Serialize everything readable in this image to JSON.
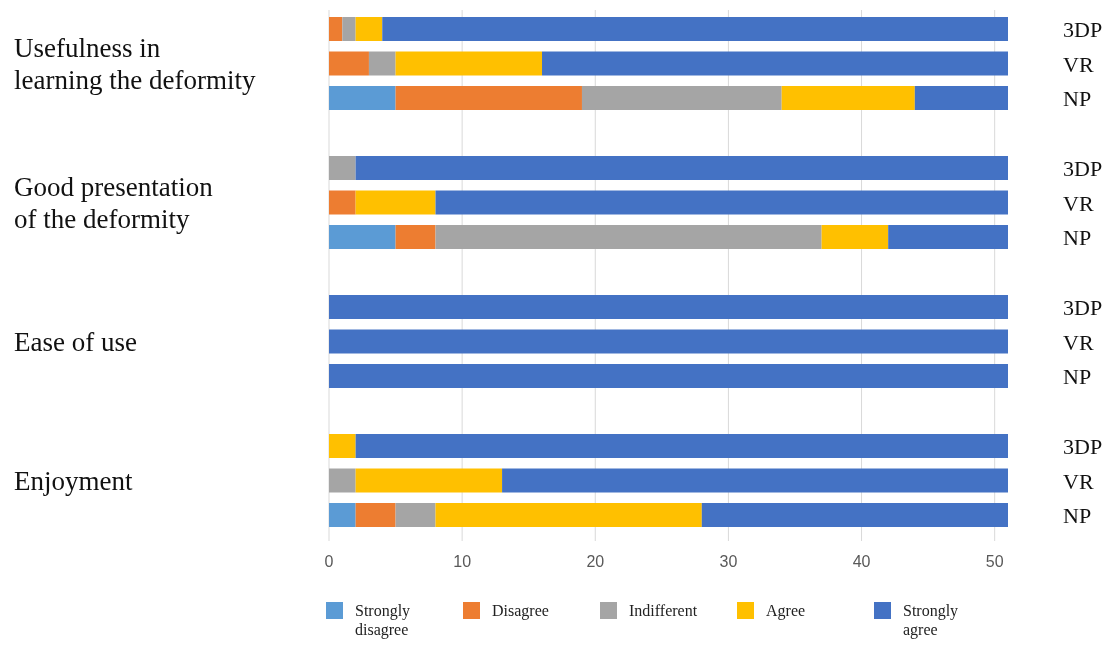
{
  "chart_data": {
    "type": "bar",
    "orientation": "horizontal",
    "stacked": true,
    "categories": [
      "3DP",
      "VR",
      "NP",
      "3DP",
      "VR",
      "NP",
      "3DP",
      "VR",
      "NP",
      "3DP",
      "VR",
      "NP"
    ],
    "annotations": [
      "Usefulness in\nlearning the deformity",
      "Good presentation\nof the deformity",
      "Ease of use",
      "Enjoyment"
    ],
    "series": [
      {
        "name": "Strongly disagree",
        "color": "#5b9bd5",
        "values": [
          0,
          0,
          5,
          0,
          0,
          5,
          0,
          0,
          0,
          0,
          0,
          2
        ]
      },
      {
        "name": "Disagree",
        "color": "#ed7d31",
        "values": [
          1,
          3,
          14,
          0,
          2,
          3,
          0,
          0,
          0,
          0,
          0,
          3
        ]
      },
      {
        "name": "Indifferent",
        "color": "#a5a5a5",
        "values": [
          1,
          2,
          15,
          2,
          0,
          29,
          0,
          0,
          0,
          0,
          2,
          3
        ]
      },
      {
        "name": "Agree",
        "color": "#ffc000",
        "values": [
          2,
          11,
          10,
          0,
          6,
          5,
          0,
          0,
          0,
          2,
          11,
          20
        ]
      },
      {
        "name": "Strongly agree",
        "color": "#4472c4",
        "values": [
          47,
          35,
          7,
          49,
          43,
          9,
          51,
          51,
          51,
          49,
          38,
          23
        ]
      }
    ],
    "xlim": [
      0,
      51
    ],
    "xticks": [
      0,
      10,
      20,
      30,
      40,
      50
    ],
    "grid": "x",
    "legend": "bottom"
  }
}
